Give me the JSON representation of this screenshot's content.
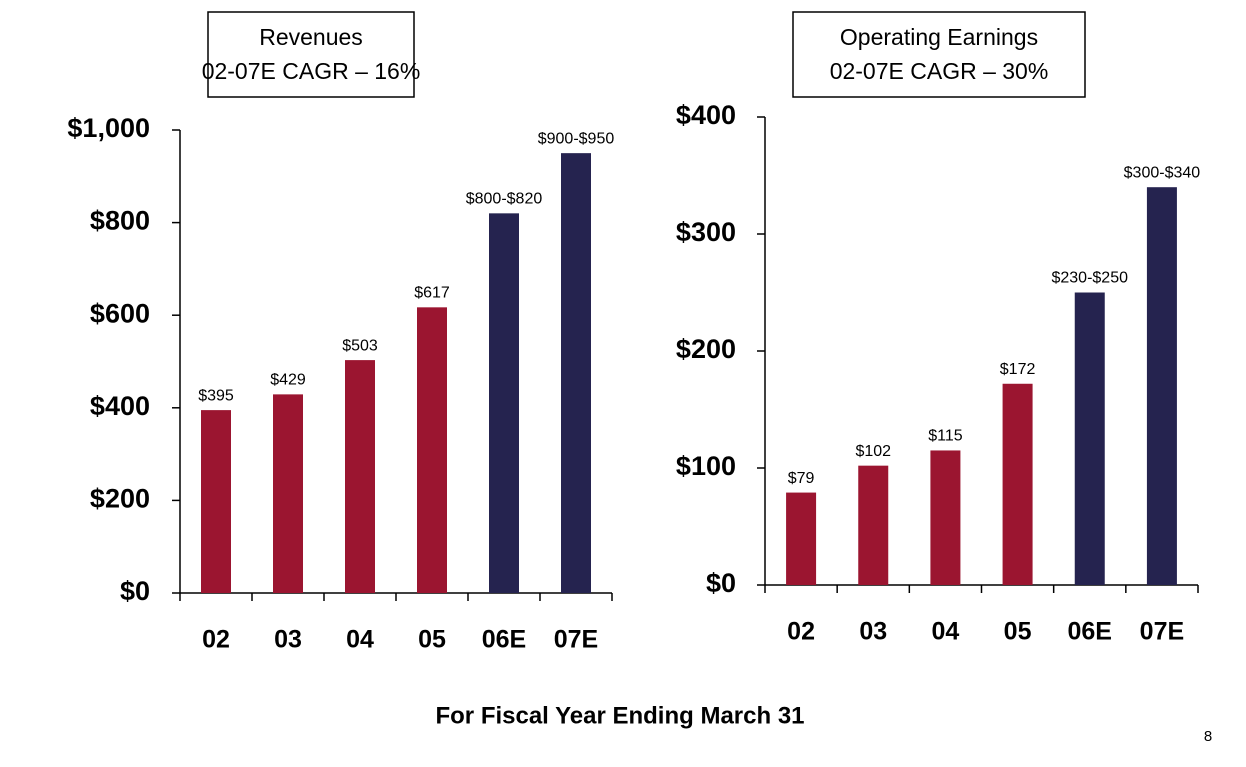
{
  "chart_data": [
    {
      "type": "bar",
      "title": "Revenues",
      "subtitle": "02-07E CAGR – 16%",
      "categories": [
        "02",
        "03",
        "04",
        "05",
        "06E",
        "07E"
      ],
      "values": [
        395,
        429,
        503,
        617,
        820,
        950
      ],
      "value_labels": [
        "$395",
        "$429",
        "$503",
        "$617",
        "$800-$820",
        "$900-$950"
      ],
      "colors": [
        "#9b1530",
        "#9b1530",
        "#9b1530",
        "#9b1530",
        "#25234f",
        "#25234f"
      ],
      "ylim": [
        0,
        1000
      ],
      "yticks": [
        {
          "value": 0,
          "label": "$0"
        },
        {
          "value": 200,
          "label": "$200"
        },
        {
          "value": 400,
          "label": "$400"
        },
        {
          "value": 600,
          "label": "$600"
        },
        {
          "value": 800,
          "label": "$800"
        },
        {
          "value": 1000,
          "label": "$1,000"
        }
      ]
    },
    {
      "type": "bar",
      "title": "Operating Earnings",
      "subtitle": "02-07E CAGR – 30%",
      "categories": [
        "02",
        "03",
        "04",
        "05",
        "06E",
        "07E"
      ],
      "values": [
        79,
        102,
        115,
        172,
        250,
        340
      ],
      "value_labels": [
        "$79",
        "$102",
        "$115",
        "$172",
        "$230-$250",
        "$300-$340"
      ],
      "colors": [
        "#9b1530",
        "#9b1530",
        "#9b1530",
        "#9b1530",
        "#25234f",
        "#25234f"
      ],
      "ylim": [
        0,
        400
      ],
      "yticks": [
        {
          "value": 0,
          "label": "$0"
        },
        {
          "value": 100,
          "label": "$100"
        },
        {
          "value": 200,
          "label": "$200"
        },
        {
          "value": 300,
          "label": "$300"
        },
        {
          "value": 400,
          "label": "$400"
        }
      ]
    }
  ],
  "footer": "For Fiscal Year Ending March 31",
  "page_number": "8"
}
